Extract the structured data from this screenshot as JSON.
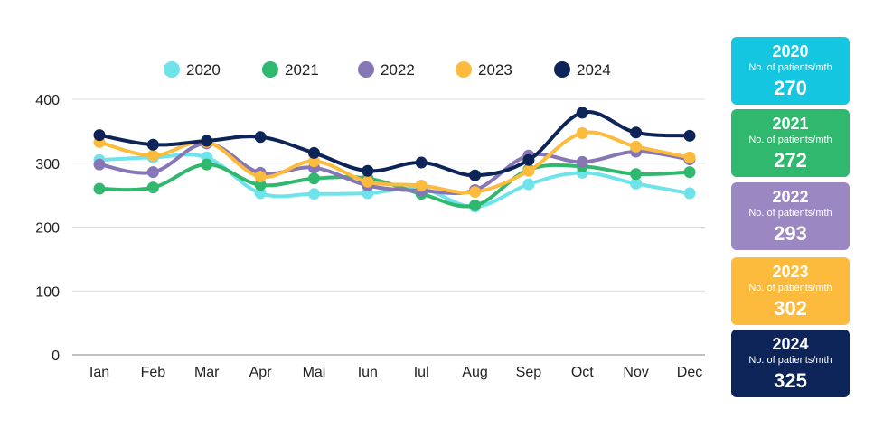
{
  "chart_data": {
    "type": "line",
    "categories": [
      "Ian",
      "Feb",
      "Mar",
      "Apr",
      "Mai",
      "Iun",
      "Iul",
      "Aug",
      "Sep",
      "Oct",
      "Nov",
      "Dec"
    ],
    "ylim": [
      0,
      400
    ],
    "yticks": [
      0,
      100,
      200,
      300,
      400
    ],
    "grid": true,
    "legend_position": "top",
    "series": [
      {
        "name": "2020",
        "color": "#6ee3ea",
        "values": [
          305,
          309,
          309,
          253,
          252,
          253,
          260,
          232,
          267,
          285,
          268,
          253
        ]
      },
      {
        "name": "2021",
        "color": "#2fb86e",
        "values": [
          260,
          262,
          298,
          266,
          276,
          276,
          252,
          234,
          290,
          295,
          283,
          286
        ]
      },
      {
        "name": "2022",
        "color": "#8776b5",
        "values": [
          298,
          286,
          331,
          285,
          293,
          265,
          257,
          258,
          312,
          302,
          318,
          306
        ]
      },
      {
        "name": "2023",
        "color": "#fcbb3d",
        "values": [
          333,
          312,
          333,
          279,
          303,
          271,
          265,
          255,
          288,
          347,
          326,
          309
        ]
      },
      {
        "name": "2024",
        "color": "#0c2457",
        "values": [
          344,
          329,
          335,
          341,
          316,
          288,
          301,
          281,
          305,
          379,
          348,
          343
        ]
      }
    ]
  },
  "cards": [
    {
      "year": "2020",
      "label": "No. of patients/mth",
      "value": "270",
      "color": "#14c6e0"
    },
    {
      "year": "2021",
      "label": "No. of patients/mth",
      "value": "272",
      "color": "#2fb86e"
    },
    {
      "year": "2022",
      "label": "No. of patients/mth",
      "value": "293",
      "color": "#9b88c2"
    },
    {
      "year": "2023",
      "label": "No. of patients/mth",
      "value": "302",
      "color": "#fcbb3d"
    },
    {
      "year": "2024",
      "label": "No. of patients/mth",
      "value": "325",
      "color": "#0c2457"
    }
  ]
}
